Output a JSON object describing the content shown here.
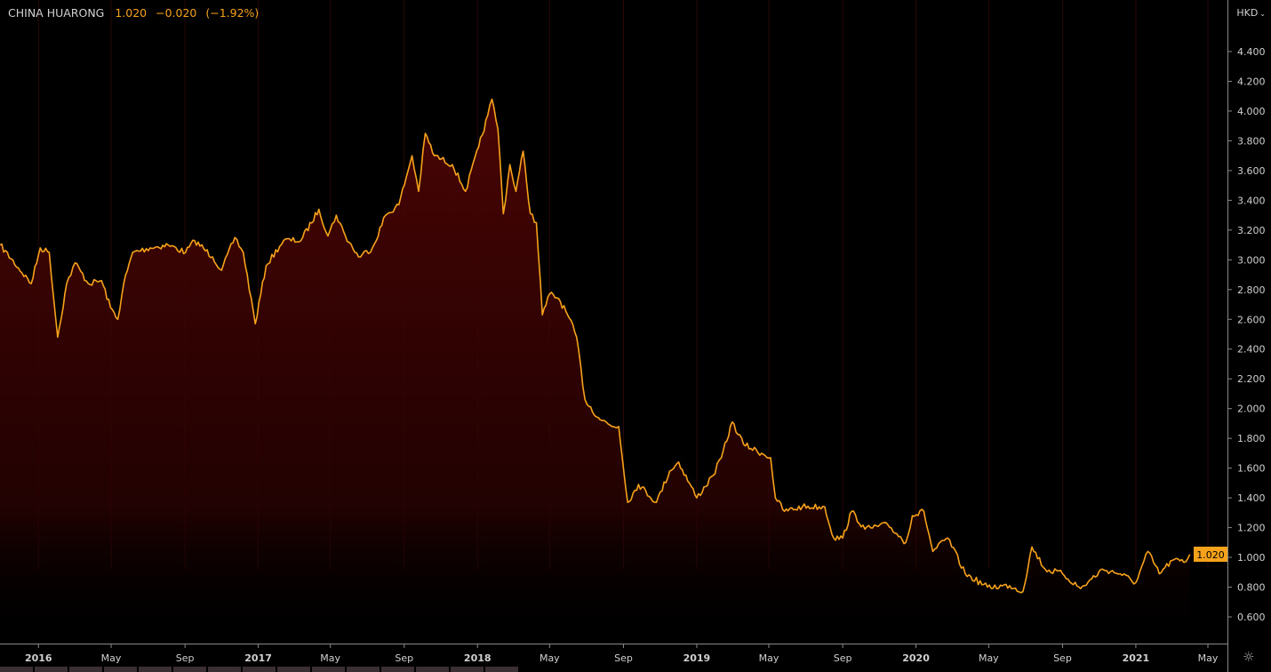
{
  "header": {
    "symbol_name": "CHINA HUARONG",
    "last_price": "1.020",
    "change": "−0.020",
    "change_pct": "(−1.92%)",
    "currency": "HKD",
    "currency_icon": "chevron-down-icon"
  },
  "footer": {
    "settings_icon": "sun-gear-icon"
  },
  "colors": {
    "line": "#f7a21b",
    "fill_top": "#4a0404",
    "background": "#000000",
    "axis_text": "#d0d0d0",
    "price_label_bg": "#f7a21b"
  },
  "chart_data": {
    "type": "area",
    "title": "",
    "xlabel": "",
    "ylabel": "",
    "ylim": [
      0.6,
      4.4
    ],
    "xlim": [
      "2015-10-29",
      "2021-05-01"
    ],
    "grid": "vertical",
    "y_ticks": [
      "0.600",
      "0.800",
      "1.000",
      "1.200",
      "1.400",
      "1.600",
      "1.800",
      "2.000",
      "2.200",
      "2.400",
      "2.600",
      "2.800",
      "3.000",
      "3.200",
      "3.400",
      "3.600",
      "3.800",
      "4.000",
      "4.200",
      "4.400"
    ],
    "x_ticks": [
      {
        "date": "2016-01-01",
        "label": "2016",
        "major": true
      },
      {
        "date": "2016-05-01",
        "label": "May"
      },
      {
        "date": "2016-09-01",
        "label": "Sep"
      },
      {
        "date": "2017-01-01",
        "label": "2017",
        "major": true
      },
      {
        "date": "2017-05-01",
        "label": "May"
      },
      {
        "date": "2017-09-01",
        "label": "Sep"
      },
      {
        "date": "2018-01-01",
        "label": "2018",
        "major": true
      },
      {
        "date": "2018-05-01",
        "label": "May"
      },
      {
        "date": "2018-09-01",
        "label": "Sep"
      },
      {
        "date": "2019-01-01",
        "label": "2019",
        "major": true
      },
      {
        "date": "2019-05-01",
        "label": "May"
      },
      {
        "date": "2019-09-01",
        "label": "Sep"
      },
      {
        "date": "2020-01-01",
        "label": "2020",
        "major": true
      },
      {
        "date": "2020-05-01",
        "label": "May"
      },
      {
        "date": "2020-09-01",
        "label": "Sep"
      },
      {
        "date": "2021-01-01",
        "label": "2021",
        "major": true
      },
      {
        "date": "2021-05-01",
        "label": "May"
      }
    ],
    "last_value_label": "1.020",
    "series": [
      {
        "x": [
          "2015-10-29",
          "2015-12-20",
          "2016-01-04",
          "2016-01-19",
          "2016-02-02",
          "2016-02-17",
          "2016-03-02",
          "2016-03-24",
          "2016-04-15",
          "2016-04-30",
          "2016-05-12",
          "2016-05-22",
          "2016-06-06",
          "2016-07-05",
          "2016-08-04",
          "2016-09-02",
          "2016-09-17",
          "2016-10-17",
          "2016-11-01",
          "2016-11-23",
          "2016-12-07",
          "2016-12-27",
          "2017-01-14",
          "2017-02-12",
          "2017-03-13",
          "2017-04-12",
          "2017-04-27",
          "2017-05-11",
          "2017-05-26",
          "2017-06-17",
          "2017-07-10",
          "2017-08-01",
          "2017-08-23",
          "2017-09-14",
          "2017-09-25",
          "2017-10-06",
          "2017-10-21",
          "2017-11-20",
          "2017-12-12",
          "2018-01-03",
          "2018-01-18",
          "2018-01-25",
          "2018-02-04",
          "2018-02-13",
          "2018-02-24",
          "2018-03-06",
          "2018-03-18",
          "2018-03-30",
          "2018-04-09",
          "2018-04-19",
          "2018-05-01",
          "2018-05-16",
          "2018-05-31",
          "2018-06-15",
          "2018-06-29",
          "2018-07-21",
          "2018-08-13",
          "2018-08-24",
          "2018-09-08",
          "2018-09-26",
          "2018-10-26",
          "2018-11-17",
          "2018-12-02",
          "2019-01-01",
          "2019-01-28",
          "2019-02-11",
          "2019-03-01",
          "2019-03-20",
          "2019-04-19",
          "2019-05-04",
          "2019-05-12",
          "2019-05-27",
          "2019-06-26",
          "2019-08-02",
          "2019-08-17",
          "2019-09-01",
          "2019-09-16",
          "2019-10-08",
          "2019-11-15",
          "2019-12-15",
          "2019-12-26",
          "2020-01-14",
          "2020-01-29",
          "2020-02-23",
          "2020-03-23",
          "2020-04-29",
          "2020-06-05",
          "2020-06-27",
          "2020-07-12",
          "2020-08-03",
          "2020-09-01",
          "2020-10-01",
          "2020-11-07",
          "2020-12-06",
          "2021-01-01",
          "2021-01-21",
          "2021-02-09",
          "2021-03-03",
          "2021-03-25",
          "2021-04-01"
        ],
        "y": [
          3.1,
          2.84,
          3.08,
          3.05,
          2.48,
          2.84,
          2.98,
          2.84,
          2.86,
          2.68,
          2.6,
          2.84,
          3.05,
          3.08,
          3.1,
          3.05,
          3.13,
          3.02,
          2.93,
          3.15,
          3.05,
          2.57,
          2.96,
          3.13,
          3.13,
          3.34,
          3.16,
          3.3,
          3.16,
          3.02,
          3.08,
          3.3,
          3.37,
          3.7,
          3.46,
          3.85,
          3.7,
          3.64,
          3.46,
          3.76,
          3.97,
          4.08,
          3.88,
          3.31,
          3.64,
          3.46,
          3.73,
          3.31,
          3.25,
          2.63,
          2.77,
          2.74,
          2.63,
          2.48,
          2.06,
          1.94,
          1.88,
          1.88,
          1.37,
          1.49,
          1.37,
          1.58,
          1.64,
          1.4,
          1.55,
          1.67,
          1.91,
          1.76,
          1.7,
          1.67,
          1.4,
          1.31,
          1.34,
          1.34,
          1.13,
          1.13,
          1.31,
          1.19,
          1.22,
          1.1,
          1.28,
          1.31,
          1.04,
          1.13,
          0.89,
          0.8,
          0.81,
          0.77,
          1.07,
          0.92,
          0.89,
          0.79,
          0.92,
          0.89,
          0.83,
          1.04,
          0.89,
          0.98,
          0.97,
          1.02
        ]
      }
    ]
  }
}
